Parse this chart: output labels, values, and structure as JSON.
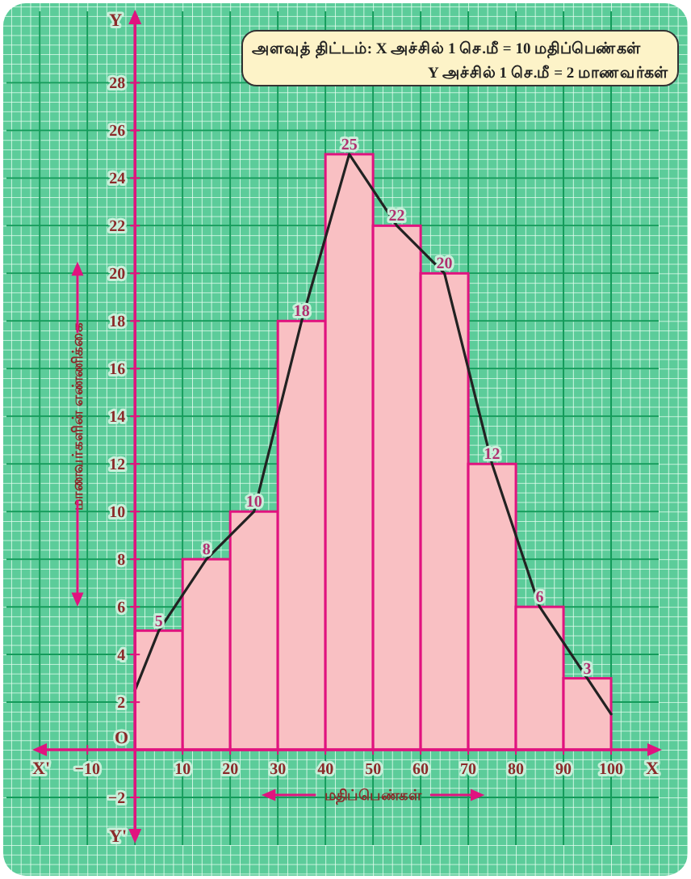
{
  "chart_data": {
    "type": "histogram",
    "xlabel": "மதிப்பெண்கள்",
    "ylabel": "மாணவர்களின் எண்ணிக்கை",
    "bins": [
      0,
      10,
      20,
      30,
      40,
      50,
      60,
      70,
      80,
      90,
      100
    ],
    "values": [
      5,
      8,
      10,
      18,
      25,
      22,
      20,
      12,
      6,
      3
    ],
    "color": "#f9c0c3",
    "value_labels": [
      "5",
      "8",
      "10",
      "18",
      "25",
      "22",
      "20",
      "12",
      "6",
      "3"
    ],
    "series": [
      {
        "type": "line",
        "color": "#222222",
        "x": [
          0,
          5,
          15,
          25,
          35,
          45,
          55,
          65,
          75,
          85,
          95,
          100
        ],
        "values": [
          2.5,
          5,
          8,
          10,
          18,
          25,
          22,
          20,
          12,
          6,
          3,
          1.5
        ]
      }
    ],
    "xlim": [
      -27,
      110
    ],
    "ylim": [
      -4,
      31
    ],
    "xticks": [
      {
        "value": -10,
        "label": "−10"
      },
      10,
      20,
      30,
      40,
      50,
      60,
      70,
      80,
      90,
      100
    ],
    "yticks": [
      {
        "value": -2,
        "label": "−2"
      },
      2,
      4,
      6,
      8,
      10,
      12,
      14,
      16,
      18,
      20,
      22,
      24,
      26,
      28
    ],
    "grid": true,
    "annotations": [
      "அளவுத் திட்டம்: X அச்சில் 1 செ.மீ = 10 மதிப்பெண்கள்",
      "Y அச்சில் 1 செ.மீ = 2 மாணவர்கள்",
      "X'",
      "X",
      "Y",
      "Y'",
      "O"
    ]
  }
}
